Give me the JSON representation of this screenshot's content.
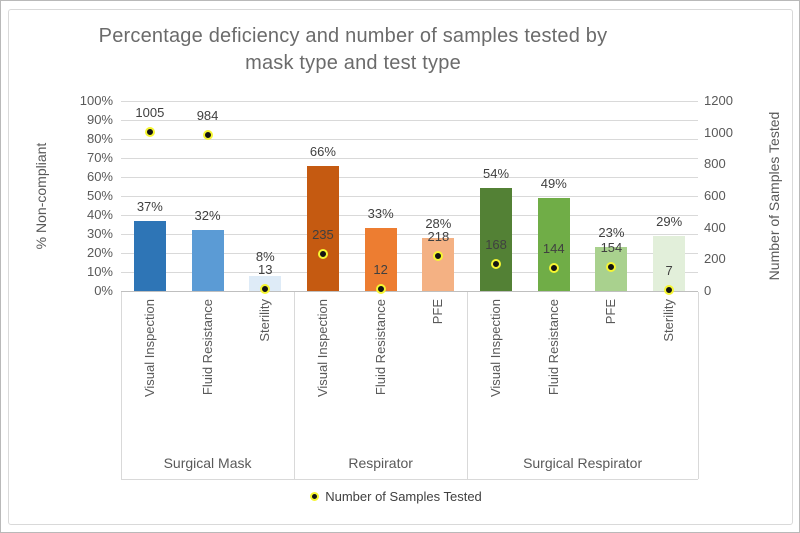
{
  "chart": {
    "title_line1": "Percentage deficiency and number of samples tested by",
    "title_line2": "mask type and test type"
  },
  "chart_data": {
    "type": "bar",
    "secondary_type": "scatter",
    "title": "Percentage deficiency and number of samples tested by mask type and test type",
    "grid": true,
    "left_axis": {
      "label": "% Non-compliant",
      "min": 0,
      "max": 100,
      "ticks": [
        "0%",
        "10%",
        "20%",
        "30%",
        "40%",
        "50%",
        "60%",
        "70%",
        "80%",
        "90%",
        "100%"
      ]
    },
    "right_axis": {
      "label": "Number of Samples Tested",
      "min": 0,
      "max": 1200,
      "ticks": [
        "0",
        "200",
        "400",
        "600",
        "800",
        "1000",
        "1200"
      ]
    },
    "legend": {
      "label": "Number of Samples Tested",
      "position": "bottom",
      "marker": {
        "fill": "#141414",
        "ring": "#f6f632"
      }
    },
    "groups": [
      {
        "label": "Surgical Mask",
        "tests": [
          {
            "label": "Visual Inspection",
            "pct_non_compliant": 37,
            "samples_tested": 1005,
            "bar_color": "#2E75B6"
          },
          {
            "label": "Fluid Resistance",
            "pct_non_compliant": 32,
            "samples_tested": 984,
            "bar_color": "#5B9BD5"
          },
          {
            "label": "Sterility",
            "pct_non_compliant": 8,
            "samples_tested": 13,
            "bar_color": "#DEEBF7"
          }
        ]
      },
      {
        "label": "Respirator",
        "tests": [
          {
            "label": "Visual Inspection",
            "pct_non_compliant": 66,
            "samples_tested": 235,
            "bar_color": "#C55A11"
          },
          {
            "label": "Fluid Resistance",
            "pct_non_compliant": 33,
            "samples_tested": 12,
            "bar_color": "#ED7D31"
          },
          {
            "label": "PFE",
            "pct_non_compliant": 28,
            "samples_tested": 218,
            "bar_color": "#F4B183"
          }
        ]
      },
      {
        "label": "Surgical Respirator",
        "tests": [
          {
            "label": "Visual Inspection",
            "pct_non_compliant": 54,
            "samples_tested": 168,
            "bar_color": "#538135"
          },
          {
            "label": "Fluid Resistance",
            "pct_non_compliant": 49,
            "samples_tested": 144,
            "bar_color": "#70AD47"
          },
          {
            "label": "PFE",
            "pct_non_compliant": 23,
            "samples_tested": 154,
            "bar_color": "#A9D18E"
          },
          {
            "label": "Sterility",
            "pct_non_compliant": 29,
            "samples_tested": 7,
            "bar_color": "#E2EFDA"
          }
        ]
      }
    ]
  }
}
